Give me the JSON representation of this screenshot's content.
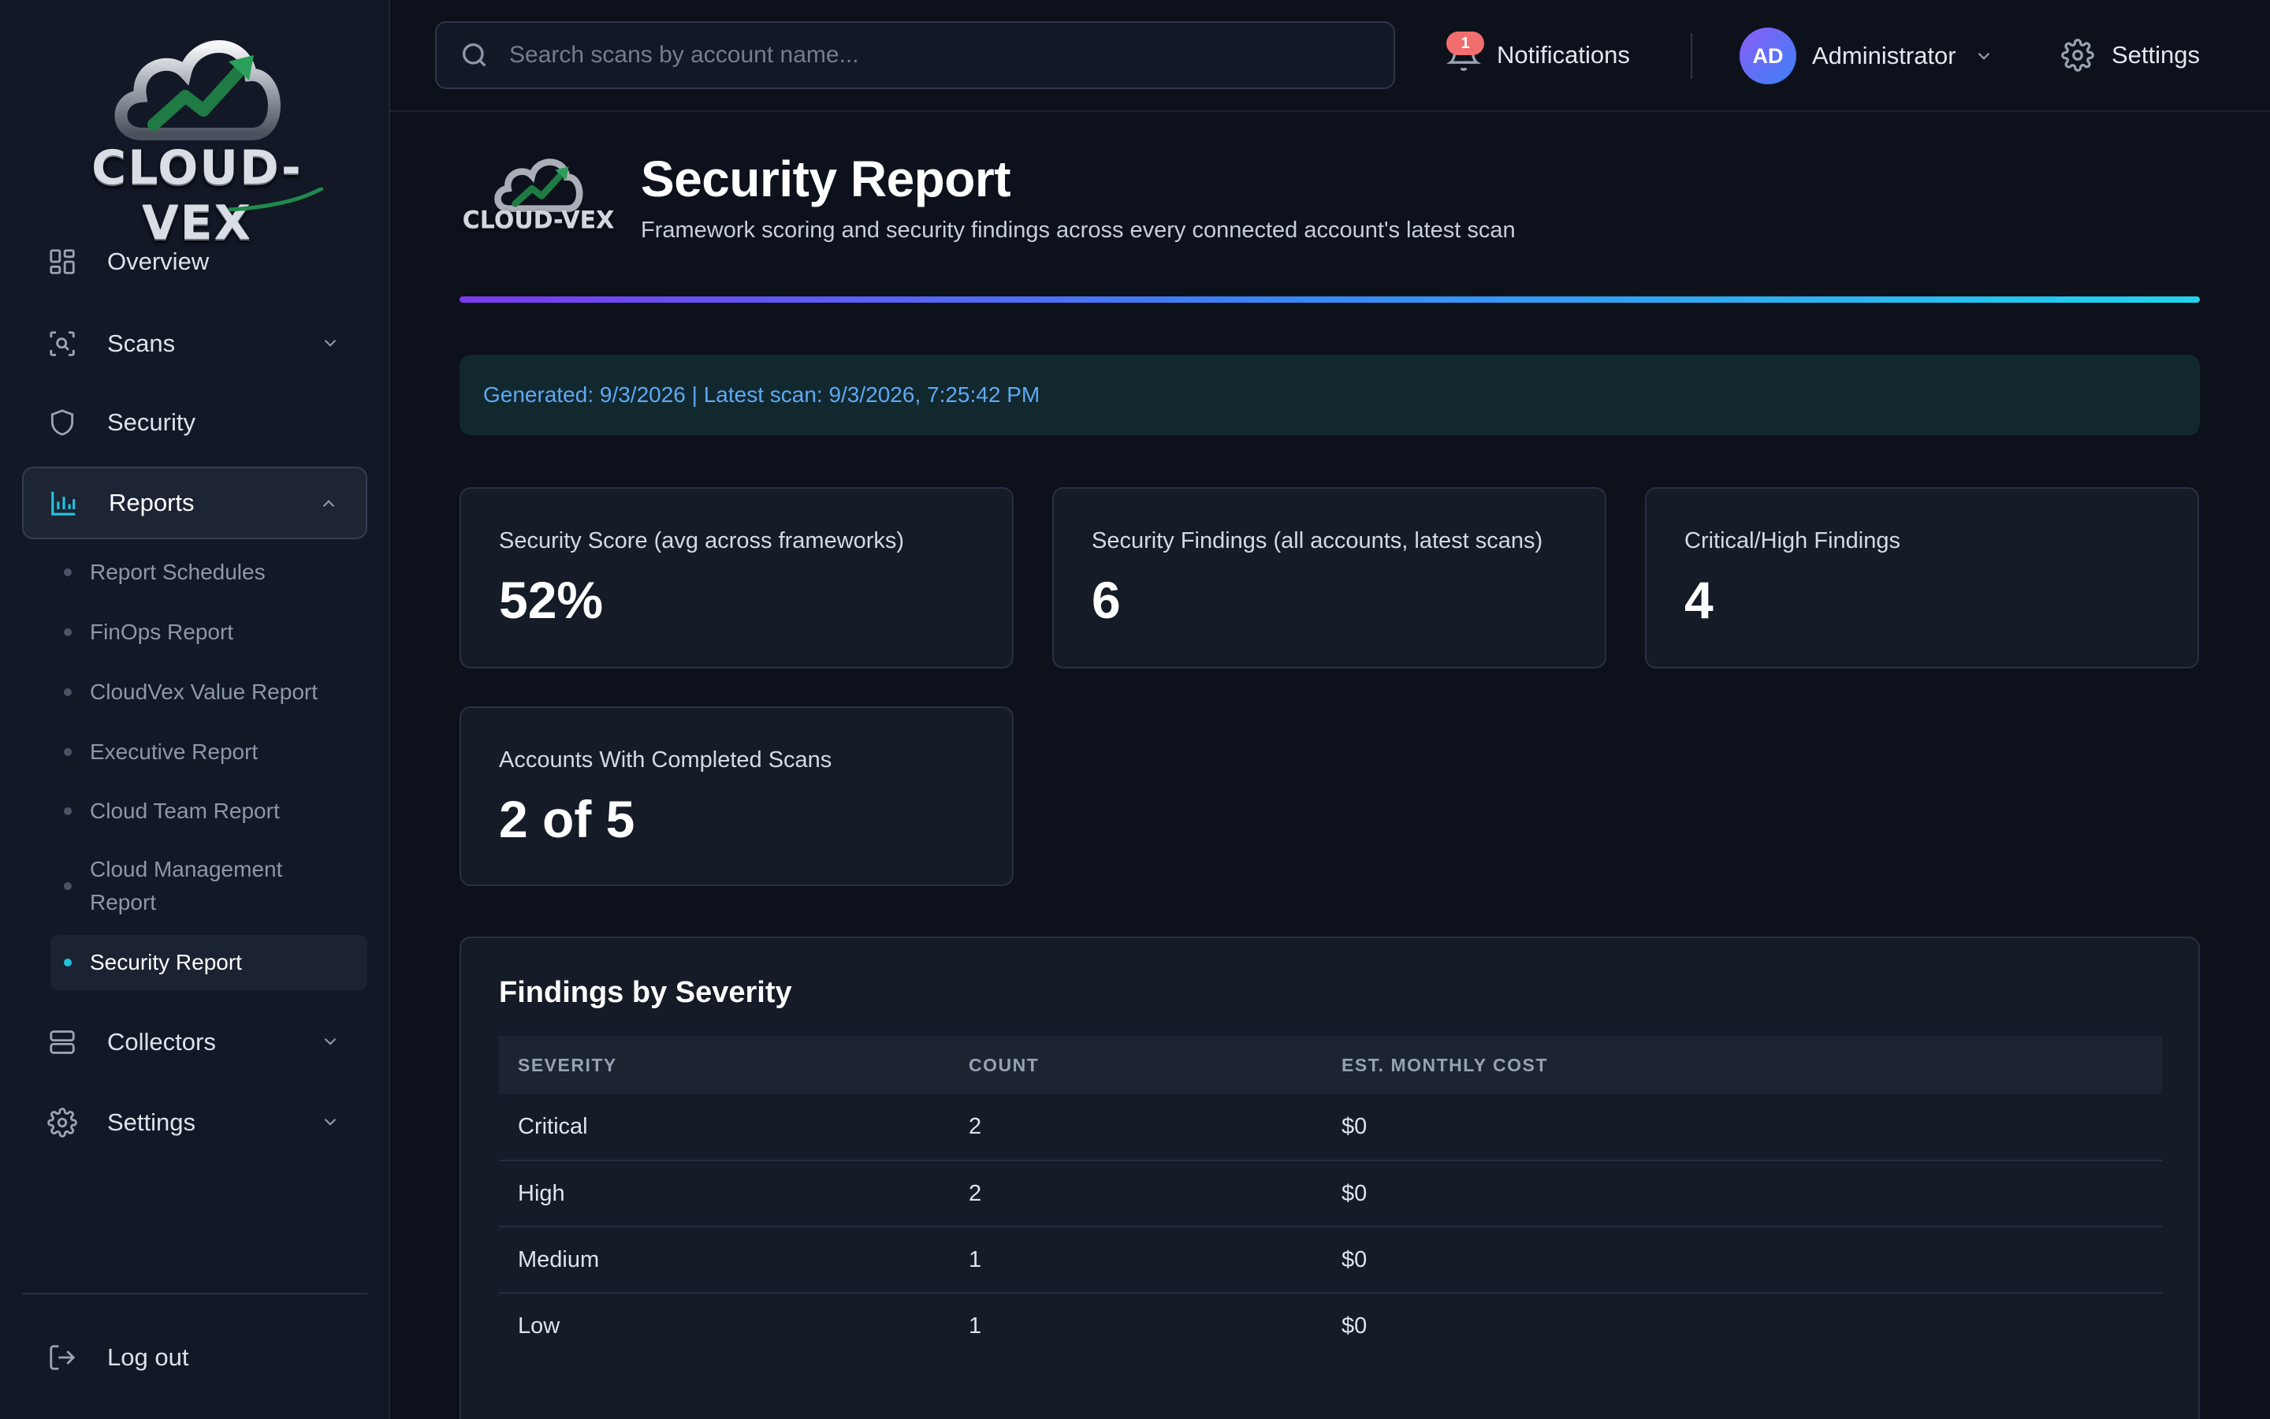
{
  "app": {
    "brand_name": "CLOUD-VEX",
    "colors": {
      "accent": "#22c1e0",
      "gradient_start": "#7c3aed",
      "gradient_mid": "#3b82f6",
      "gradient_end": "#22d3ee",
      "badge": "#f26d6d",
      "banner_text": "#5ea9f2"
    }
  },
  "sidebar": {
    "nav": [
      {
        "label": "Overview",
        "icon": "grid-icon"
      },
      {
        "label": "Scans",
        "icon": "scan-icon",
        "expandable": true
      },
      {
        "label": "Security",
        "icon": "shield-icon"
      },
      {
        "label": "Reports",
        "icon": "bar-chart-icon",
        "expandable": true,
        "expanded": true,
        "active": true
      },
      {
        "label": "Collectors",
        "icon": "server-icon",
        "expandable": true
      },
      {
        "label": "Settings",
        "icon": "gear-icon",
        "expandable": true
      }
    ],
    "reports_sub": [
      {
        "label": "Report Schedules"
      },
      {
        "label": "FinOps Report"
      },
      {
        "label": "CloudVex Value Report"
      },
      {
        "label": "Executive Report"
      },
      {
        "label": "Cloud Team Report"
      },
      {
        "label": "Cloud Management Report"
      },
      {
        "label": "Security Report",
        "active": true
      }
    ],
    "logout_label": "Log out"
  },
  "topbar": {
    "search_placeholder": "Search scans by account name...",
    "notifications_label": "Notifications",
    "notifications_count": "1",
    "user_initials": "AD",
    "user_name": "Administrator",
    "settings_label": "Settings"
  },
  "page": {
    "title": "Security Report",
    "subtitle": "Framework scoring and security findings across every connected account's latest scan",
    "meta": "Generated: 9/3/2026 | Latest scan: 9/3/2026, 7:25:42 PM",
    "stats": [
      {
        "label": "Security Score (avg across frameworks)",
        "value": "52%"
      },
      {
        "label": "Security Findings (all accounts, latest scans)",
        "value": "6"
      },
      {
        "label": "Critical/High Findings",
        "value": "4"
      },
      {
        "label": "Accounts With Completed Scans",
        "value": "2 of 5"
      }
    ],
    "findings_table": {
      "title": "Findings by Severity",
      "columns": [
        "SEVERITY",
        "COUNT",
        "EST. MONTHLY COST"
      ],
      "rows": [
        [
          "Critical",
          "2",
          "$0"
        ],
        [
          "High",
          "2",
          "$0"
        ],
        [
          "Medium",
          "1",
          "$0"
        ],
        [
          "Low",
          "1",
          "$0"
        ]
      ]
    }
  }
}
